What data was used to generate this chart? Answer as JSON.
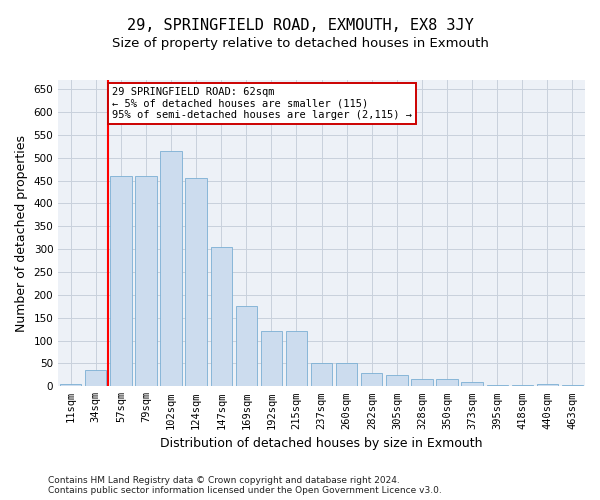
{
  "title": "29, SPRINGFIELD ROAD, EXMOUTH, EX8 3JY",
  "subtitle": "Size of property relative to detached houses in Exmouth",
  "xlabel": "Distribution of detached houses by size in Exmouth",
  "ylabel": "Number of detached properties",
  "categories": [
    "11sqm",
    "34sqm",
    "57sqm",
    "79sqm",
    "102sqm",
    "124sqm",
    "147sqm",
    "169sqm",
    "192sqm",
    "215sqm",
    "237sqm",
    "260sqm",
    "282sqm",
    "305sqm",
    "328sqm",
    "350sqm",
    "373sqm",
    "395sqm",
    "418sqm",
    "440sqm",
    "463sqm"
  ],
  "values": [
    5,
    35,
    460,
    460,
    515,
    455,
    305,
    175,
    120,
    120,
    50,
    50,
    30,
    25,
    15,
    15,
    10,
    3,
    3,
    5,
    3
  ],
  "bar_color": "#ccdcee",
  "bar_edge_color": "#7bafd4",
  "grid_color": "#c8d0dc",
  "background_color": "#edf1f7",
  "annotation_text": "29 SPRINGFIELD ROAD: 62sqm\n← 5% of detached houses are smaller (115)\n95% of semi-detached houses are larger (2,115) →",
  "annotation_box_color": "#ffffff",
  "annotation_box_edge": "#cc0000",
  "footnote1": "Contains HM Land Registry data © Crown copyright and database right 2024.",
  "footnote2": "Contains public sector information licensed under the Open Government Licence v3.0.",
  "ylim": [
    0,
    670
  ],
  "yticks": [
    0,
    50,
    100,
    150,
    200,
    250,
    300,
    350,
    400,
    450,
    500,
    550,
    600,
    650
  ],
  "title_fontsize": 11,
  "subtitle_fontsize": 9.5,
  "axis_label_fontsize": 9,
  "tick_fontsize": 7.5,
  "annotation_fontsize": 7.5,
  "footnote_fontsize": 6.5,
  "red_line_index": 2
}
